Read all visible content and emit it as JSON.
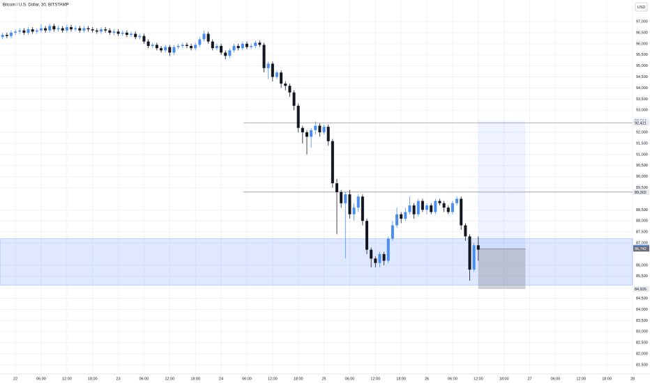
{
  "chart_data": {
    "type": "candlestick",
    "title": "Bitcoin / U.S. Dollar, 30, BITSTAMP",
    "currency": "USD",
    "up_color": "#4a8ff0",
    "down_color": "#131722",
    "grid": true,
    "xlim": [
      -3.6,
      144
    ],
    "ylim": [
      81090,
      97975
    ],
    "xticks": [
      {
        "value": 0,
        "label": "22"
      },
      {
        "value": 6,
        "label": "06:00"
      },
      {
        "value": 12,
        "label": "12:00"
      },
      {
        "value": 18,
        "label": "18:00"
      },
      {
        "value": 24,
        "label": "23"
      },
      {
        "value": 30,
        "label": "06:00"
      },
      {
        "value": 36,
        "label": "12:00"
      },
      {
        "value": 42,
        "label": "18:00"
      },
      {
        "value": 48,
        "label": "24"
      },
      {
        "value": 54,
        "label": "06:00"
      },
      {
        "value": 60,
        "label": "12:00"
      },
      {
        "value": 66,
        "label": "18:00"
      },
      {
        "value": 72,
        "label": "25"
      },
      {
        "value": 78,
        "label": "06:00"
      },
      {
        "value": 84,
        "label": "12:00"
      },
      {
        "value": 90,
        "label": "18:00"
      },
      {
        "value": 96,
        "label": "26"
      },
      {
        "value": 102,
        "label": "06:00"
      },
      {
        "value": 108,
        "label": "12:00"
      },
      {
        "value": 114,
        "label": "18:00"
      },
      {
        "value": 120,
        "label": "27"
      },
      {
        "value": 126,
        "label": "06:00"
      },
      {
        "value": 132,
        "label": "12:00"
      },
      {
        "value": 138,
        "label": "18:00"
      },
      {
        "value": 144,
        "label": "28"
      }
    ],
    "yticks": [
      {
        "value": 81500,
        "label": "81,500"
      },
      {
        "value": 82000,
        "label": "82,000"
      },
      {
        "value": 82500,
        "label": "82,500"
      },
      {
        "value": 83000,
        "label": "83,000"
      },
      {
        "value": 83500,
        "label": "83,500"
      },
      {
        "value": 84000,
        "label": "84,000"
      },
      {
        "value": 84500,
        "label": "84,500"
      },
      {
        "value": 85500,
        "label": "85,500"
      },
      {
        "value": 86000,
        "label": "86,000"
      },
      {
        "value": 87000,
        "label": "87,000"
      },
      {
        "value": 87500,
        "label": "87,500"
      },
      {
        "value": 88000,
        "label": "88,000"
      },
      {
        "value": 88500,
        "label": "88,500"
      },
      {
        "value": 89500,
        "label": "89,500"
      },
      {
        "value": 90000,
        "label": "90,000"
      },
      {
        "value": 90500,
        "label": "90,500"
      },
      {
        "value": 91000,
        "label": "91,000"
      },
      {
        "value": 91500,
        "label": "91,500"
      },
      {
        "value": 92000,
        "label": "92,000"
      },
      {
        "value": 93000,
        "label": "93,000"
      },
      {
        "value": 93500,
        "label": "93,500"
      },
      {
        "value": 94000,
        "label": "94,000"
      },
      {
        "value": 94500,
        "label": "94,500"
      },
      {
        "value": 95000,
        "label": "95,000"
      },
      {
        "value": 95500,
        "label": "95,500"
      },
      {
        "value": 96000,
        "label": "96,000"
      },
      {
        "value": 96500,
        "label": "96,500"
      },
      {
        "value": 97000,
        "label": "97,000"
      }
    ],
    "x": [
      -3,
      -2,
      -1,
      0,
      1,
      2,
      3,
      4,
      5,
      6,
      7,
      8,
      9,
      10,
      11,
      12,
      13,
      14,
      15,
      16,
      17,
      18,
      19,
      20,
      21,
      22,
      23,
      24,
      25,
      26,
      27,
      28,
      29,
      30,
      31,
      32,
      33,
      34,
      35,
      36,
      37,
      38,
      39,
      40,
      41,
      42,
      43,
      44,
      45,
      46,
      47,
      48,
      49,
      50,
      51,
      52,
      53,
      54,
      55,
      56,
      57,
      58,
      59,
      60,
      61,
      62,
      63,
      64,
      65,
      66,
      67,
      68,
      69,
      70,
      71,
      72,
      73,
      74,
      75,
      76,
      77,
      78,
      79,
      80,
      81,
      82,
      83,
      84,
      85,
      86,
      87,
      88,
      89,
      90,
      91,
      92,
      93,
      94,
      95,
      96,
      97,
      98,
      99,
      100,
      101,
      102,
      103,
      104,
      105,
      106,
      107,
      108
    ],
    "open": [
      96300,
      96400,
      96350,
      96500,
      96550,
      96600,
      96500,
      96650,
      96550,
      96600,
      96700,
      96600,
      96800,
      96650,
      96700,
      96600,
      96750,
      96650,
      96700,
      96600,
      96700,
      96650,
      96600,
      96550,
      96650,
      96600,
      96500,
      96550,
      96450,
      96500,
      96400,
      96450,
      96300,
      96350,
      96100,
      95900,
      95950,
      95800,
      95700,
      95850,
      95600,
      95850,
      95900,
      95950,
      95900,
      95800,
      95950,
      96200,
      96450,
      96100,
      95800,
      95900,
      95600,
      95450,
      95700,
      95900,
      95800,
      96000,
      95850,
      95900,
      96050,
      95950,
      94900,
      95100,
      94500,
      94700,
      94200,
      94100,
      93800,
      93200,
      92200,
      92000,
      91800,
      92100,
      92300,
      92000,
      92250,
      91600,
      89700,
      89300,
      88800,
      89200,
      88300,
      88600,
      89100,
      88000,
      86700,
      86300,
      86100,
      86500,
      86200,
      87200,
      87800,
      88300,
      88100,
      88400,
      88700,
      88300,
      88900,
      88500,
      88700,
      88400,
      88900,
      88800,
      88600,
      88400,
      88800,
      89000,
      87800,
      87300,
      85800,
      86900
    ],
    "high": [
      96500,
      96500,
      96600,
      96650,
      96700,
      96700,
      96750,
      96750,
      96700,
      96900,
      96800,
      96900,
      96900,
      96800,
      96800,
      96850,
      96850,
      96800,
      96800,
      96800,
      96800,
      96750,
      96700,
      96750,
      96750,
      96700,
      96650,
      96650,
      96600,
      96600,
      96550,
      96550,
      96450,
      96450,
      96200,
      96050,
      96050,
      95900,
      95950,
      95950,
      95950,
      96000,
      96050,
      96050,
      96000,
      96050,
      96300,
      96600,
      96550,
      96200,
      96000,
      96000,
      95700,
      95800,
      96000,
      96000,
      96100,
      96100,
      96000,
      96150,
      96150,
      96050,
      95200,
      95200,
      94800,
      94800,
      94300,
      94200,
      93900,
      93300,
      92300,
      92100,
      92200,
      92500,
      92400,
      92350,
      92350,
      91700,
      89900,
      89400,
      89300,
      89400,
      88800,
      89200,
      89200,
      88100,
      86800,
      86400,
      86600,
      86600,
      87300,
      88000,
      88600,
      88400,
      88600,
      89100,
      88800,
      89000,
      89000,
      88800,
      88800,
      89000,
      89000,
      88900,
      88700,
      88900,
      89100,
      89100,
      87900,
      87400,
      87000,
      87300
    ],
    "low": [
      96200,
      96250,
      96250,
      96400,
      96450,
      96400,
      96400,
      96450,
      96450,
      96500,
      96500,
      96500,
      96550,
      96550,
      96500,
      96500,
      96550,
      96550,
      96500,
      96500,
      96550,
      96500,
      96450,
      96450,
      96500,
      96400,
      96400,
      96350,
      96350,
      96300,
      96300,
      96200,
      96200,
      96000,
      95800,
      95800,
      95700,
      95600,
      95600,
      95450,
      95500,
      95750,
      95800,
      95800,
      95700,
      95700,
      95850,
      96100,
      96000,
      95700,
      95700,
      95500,
      95300,
      95350,
      95600,
      95700,
      95700,
      95750,
      95750,
      95800,
      95850,
      94700,
      94400,
      94300,
      94400,
      94000,
      93900,
      93600,
      93000,
      92000,
      91500,
      91000,
      91300,
      91900,
      91800,
      91900,
      91400,
      89500,
      87400,
      88600,
      86300,
      88100,
      88000,
      88400,
      87800,
      86500,
      85900,
      85900,
      85900,
      86000,
      86100,
      87100,
      87700,
      87900,
      88000,
      88300,
      88100,
      88200,
      88400,
      88300,
      88300,
      88300,
      88700,
      88400,
      88300,
      88300,
      88700,
      87600,
      87100,
      85300,
      85700,
      86200
    ],
    "close": [
      96400,
      96350,
      96500,
      96550,
      96600,
      96500,
      96650,
      96550,
      96600,
      96700,
      96600,
      96800,
      96650,
      96700,
      96600,
      96750,
      96650,
      96700,
      96600,
      96700,
      96650,
      96600,
      96550,
      96650,
      96600,
      96500,
      96550,
      96450,
      96500,
      96400,
      96450,
      96300,
      96350,
      96100,
      95900,
      95950,
      95800,
      95700,
      95850,
      95600,
      95850,
      95900,
      95950,
      95900,
      95800,
      95950,
      96200,
      96450,
      96100,
      95800,
      95900,
      95600,
      95450,
      95700,
      95900,
      95800,
      96000,
      95850,
      95900,
      96050,
      95950,
      94900,
      95100,
      94500,
      94700,
      94200,
      94100,
      93800,
      93200,
      92200,
      92000,
      91800,
      92100,
      92300,
      92000,
      92250,
      91600,
      89700,
      89300,
      88800,
      89200,
      88300,
      88600,
      89100,
      88000,
      86700,
      86300,
      86100,
      86500,
      86200,
      87200,
      87800,
      88300,
      88100,
      88400,
      88700,
      88300,
      88900,
      88500,
      88700,
      88400,
      88900,
      88800,
      88600,
      88400,
      88800,
      89000,
      87800,
      87300,
      85800,
      86900,
      86700
    ],
    "zone": [
      85100,
      87200
    ],
    "hlines": [
      {
        "value": 92421,
        "label": "92,421",
        "x_start": 53.2
      },
      {
        "value": 89302,
        "label": "89,302",
        "x_start": 53.2
      }
    ],
    "position": {
      "x": [
        108,
        119
      ],
      "target": {
        "value": 92514,
        "label": "92,514"
      },
      "entry": {
        "value": 86742,
        "label": "86,742"
      },
      "stop": {
        "value": 84926,
        "label": "84,926"
      }
    },
    "last_price": {
      "value": 86792,
      "label": "86,792"
    }
  }
}
